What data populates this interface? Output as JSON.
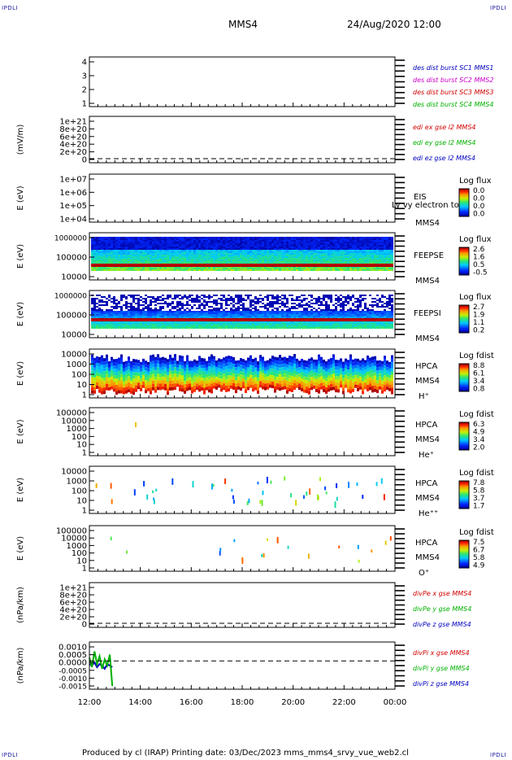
{
  "header": {
    "corner_tag": "IPDLI",
    "spacecraft": "MMS4",
    "datetime": "24/Aug/2020 12:00"
  },
  "footer": {
    "credit": "Produced by cl (IRAP)   Printing date: 03/Dec/2023   mms_mms4_srvy_vue_web2.cl"
  },
  "chart_data": [
    {
      "type": "line",
      "panel": "des-dist-burst",
      "ylabel": "",
      "yticks": [
        "1",
        "2",
        "3",
        "4"
      ],
      "legend": [
        {
          "name": "des dist burst SC1 MMS1",
          "color": "#0000c0"
        },
        {
          "name": "des dist burst SC2 MMS2",
          "color": "#cc00cc"
        },
        {
          "name": "des dist burst SC3 MMS3",
          "color": "#d00000"
        },
        {
          "name": "des dist burst SC4 MMS4",
          "color": "#00b000"
        }
      ],
      "dashed_zero": false
    },
    {
      "type": "line",
      "panel": "edi-e-gse",
      "ylabel": "(mV/m)",
      "yticks": [
        "0",
        "2e+20",
        "4e+20",
        "6e+20",
        "8e+20",
        "1e+21"
      ],
      "legend": [
        {
          "name": "edi ex gse l2 MMS4",
          "color": "#d00000"
        },
        {
          "name": "edi ey gse l2 MMS4",
          "color": "#00b000"
        },
        {
          "name": "edi ez gse l2 MMS4",
          "color": "#0000c0"
        }
      ],
      "dashed_zero": true
    },
    {
      "type": "heatmap",
      "panel": "eis",
      "ylabel": "E (eV)",
      "yticks": [
        "1e+04",
        "1e+05",
        "1e+06",
        "1e+07"
      ],
      "labels": [
        "EIS",
        "MMS4"
      ],
      "overlay_text": "Ly vy electron to",
      "colorbar": {
        "title": "Log flux",
        "ticks": [
          "0.0",
          "0.0",
          "0.0",
          "0.0"
        ]
      },
      "fill": "none"
    },
    {
      "type": "heatmap",
      "panel": "feeps-e",
      "ylabel": "E (eV)",
      "yticks": [
        "10000",
        "100000",
        "1000000"
      ],
      "labels": [
        "FEEPSE",
        "MMS4"
      ],
      "colorbar": {
        "title": "Log flux",
        "ticks": [
          "2.6",
          "1.6",
          "0.5",
          "-0.5"
        ]
      },
      "fill": "feepse"
    },
    {
      "type": "heatmap",
      "panel": "feeps-i",
      "ylabel": "E (eV)",
      "yticks": [
        "10000",
        "100000",
        "1000000"
      ],
      "labels": [
        "FEEPSI",
        "MMS4"
      ],
      "colorbar": {
        "title": "Log flux",
        "ticks": [
          "2.7",
          "1.9",
          "1.1",
          "0.2"
        ]
      },
      "fill": "feepsi"
    },
    {
      "type": "heatmap",
      "panel": "hpca-h",
      "ylabel": "E (eV)",
      "yticks": [
        "1",
        "10",
        "100",
        "1000",
        "10000"
      ],
      "labels": [
        "HPCA",
        "MMS4",
        "H⁺"
      ],
      "colorbar": {
        "title": "Log fdist",
        "ticks": [
          "8.8",
          "6.1",
          "3.4",
          "0.8"
        ]
      },
      "fill": "hplus"
    },
    {
      "type": "heatmap",
      "panel": "hpca-he",
      "ylabel": "E (eV)",
      "yticks": [
        "1",
        "10",
        "100",
        "1000",
        "10000",
        "100000"
      ],
      "labels": [
        "HPCA",
        "MMS4",
        "He⁺"
      ],
      "colorbar": {
        "title": "Log fdist",
        "ticks": [
          "6.3",
          "4.9",
          "3.4",
          "2.0"
        ]
      },
      "fill": "heplus"
    },
    {
      "type": "heatmap",
      "panel": "hpca-hepp",
      "ylabel": "E (eV)",
      "yticks": [
        "1",
        "10",
        "100",
        "1000",
        "10000"
      ],
      "labels": [
        "HPCA",
        "MMS4",
        "He⁺⁺"
      ],
      "colorbar": {
        "title": "Log fdist",
        "ticks": [
          "7.8",
          "5.8",
          "3.7",
          "1.7"
        ]
      },
      "fill": "hepp"
    },
    {
      "type": "heatmap",
      "panel": "hpca-o",
      "ylabel": "E (eV)",
      "yticks": [
        "1",
        "10",
        "100",
        "1000",
        "10000",
        "100000"
      ],
      "labels": [
        "HPCA",
        "MMS4",
        "O⁺"
      ],
      "colorbar": {
        "title": "Log fdist",
        "ticks": [
          "7.5",
          "6.7",
          "5.8",
          "4.9"
        ]
      },
      "fill": "oplus"
    },
    {
      "type": "line",
      "panel": "divpe",
      "ylabel": "(nPa/km)",
      "yticks": [
        "0",
        "2e+20",
        "4e+20",
        "6e+20",
        "8e+20",
        "1e+21"
      ],
      "legend": [
        {
          "name": "divPe x gse MMS4",
          "color": "#d00000"
        },
        {
          "name": "divPe y gse MMS4",
          "color": "#00b000"
        },
        {
          "name": "divPe z gse MMS4",
          "color": "#0000c0"
        }
      ],
      "dashed_zero": true
    },
    {
      "type": "line",
      "panel": "divpi",
      "ylabel": "(nPa/km)",
      "yticks": [
        "-0.0015",
        "-0.0010",
        "-0.0005",
        "0.0000",
        "0.0005",
        "0.0010"
      ],
      "legend": [
        {
          "name": "divPi x gse MMS4",
          "color": "#d00000"
        },
        {
          "name": "divPi y gse MMS4",
          "color": "#00b000"
        },
        {
          "name": "divPi z gse MMS4",
          "color": "#0000c0"
        }
      ],
      "dashed_zero": true,
      "x_hours": [
        0.0,
        0.1,
        0.2,
        0.3,
        0.4,
        0.5,
        0.6,
        0.7,
        0.8,
        0.9
      ],
      "series": [
        {
          "name": "divPi z gse MMS4",
          "color": "#0000c0",
          "values": [
            -0.0002,
            -0.0003,
            -0.0001,
            -0.0004,
            -0.0002,
            -0.0003,
            -0.0005,
            -0.0002,
            -0.0003,
            -0.0004
          ]
        },
        {
          "name": "divPi y gse MMS4",
          "color": "#00b000",
          "values": [
            0.0002,
            -0.0004,
            0.0006,
            -0.0002,
            0.0003,
            -0.0005,
            0.0001,
            -0.0003,
            0.0004,
            -0.0016
          ]
        }
      ]
    }
  ],
  "x_axis": {
    "ticks": [
      "12:00",
      "14:00",
      "16:00",
      "18:00",
      "20:00",
      "22:00",
      "00:00"
    ]
  }
}
